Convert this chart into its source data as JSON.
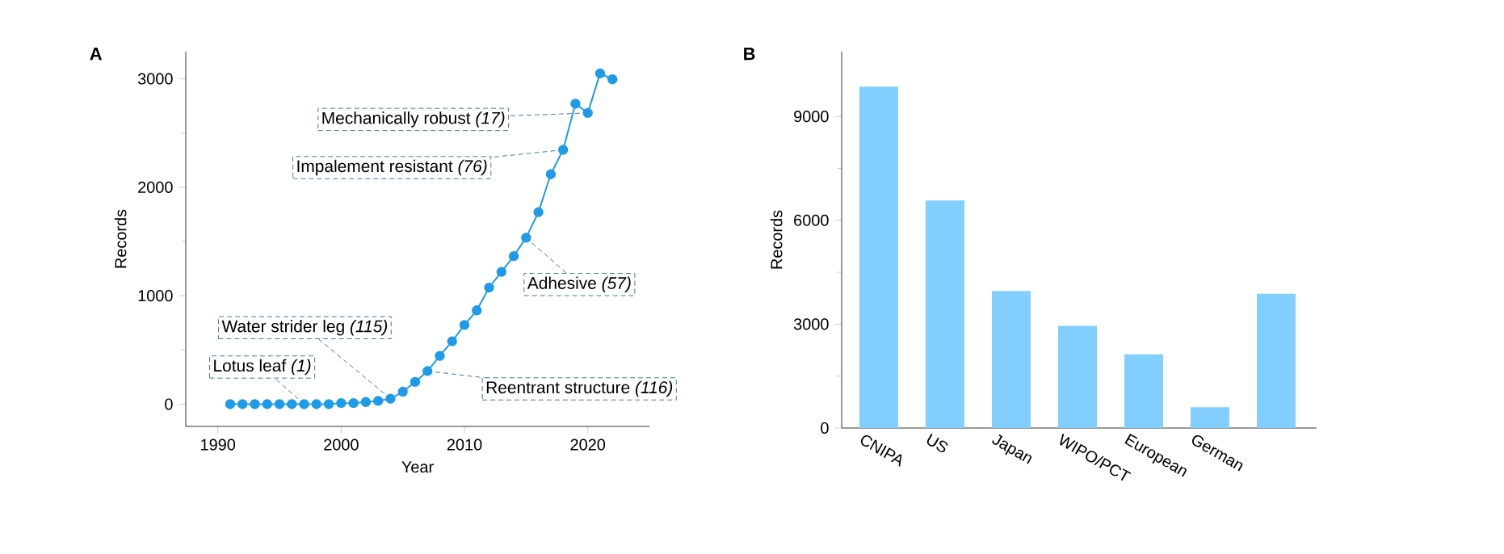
{
  "chart_data": [
    {
      "type": "line",
      "title": "A",
      "xlabel": "Year",
      "ylabel": "Records",
      "marker": "circle",
      "line_style": "solid",
      "x": [
        1991,
        1992,
        1993,
        1994,
        1995,
        1996,
        1997,
        1998,
        1999,
        2000,
        2001,
        2002,
        2003,
        2004,
        2005,
        2006,
        2007,
        2008,
        2009,
        2010,
        2011,
        2012,
        2013,
        2014,
        2015,
        2016,
        2017,
        2018,
        2019,
        2020,
        2021,
        2022
      ],
      "series": [
        {
          "color": "#1e9be8",
          "values": [
            0,
            0,
            0,
            0,
            0,
            0,
            0,
            0,
            0,
            10,
            10,
            20,
            30,
            50,
            115,
            205,
            305,
            445,
            580,
            730,
            865,
            1075,
            1220,
            1365,
            1535,
            1770,
            2120,
            2345,
            2770,
            2685,
            3050,
            2995
          ]
        }
      ],
      "xlim": [
        1987.4,
        2025
      ],
      "ylim": [
        -205,
        3250
      ],
      "xticks": [
        1990,
        2000,
        2010,
        2020
      ],
      "yticks": [
        0,
        1000,
        2000,
        3000
      ],
      "annotations": [
        {
          "text": "Lotus leaf *(1)*",
          "x": 1997,
          "y": 0
        },
        {
          "text": "Water strider leg *(115)*",
          "x": 2004,
          "y": 50
        },
        {
          "text": "Reentrant structure *(116)*",
          "x": 2007,
          "y": 305
        },
        {
          "text": "Adhesive *(57)*",
          "x": 2015,
          "y": 1535
        },
        {
          "text": "Impalement resistant *(76)*",
          "x": 2018,
          "y": 2345
        },
        {
          "text": "Mechanically robust *(17)*",
          "x": 2020,
          "y": 2685
        }
      ]
    },
    {
      "type": "bar",
      "title": "B",
      "ylabel": "Records",
      "categories": [
        "CNIPA",
        "US",
        "Japan",
        "WIPO/PCT",
        "European",
        "German",
        null
      ],
      "values": [
        9860,
        6570,
        3960,
        2950,
        2130,
        600,
        3880
      ],
      "color": "#82cfff",
      "ylim": [
        0,
        10870
      ],
      "yticks": [
        0,
        3000,
        6000,
        9000
      ]
    }
  ]
}
